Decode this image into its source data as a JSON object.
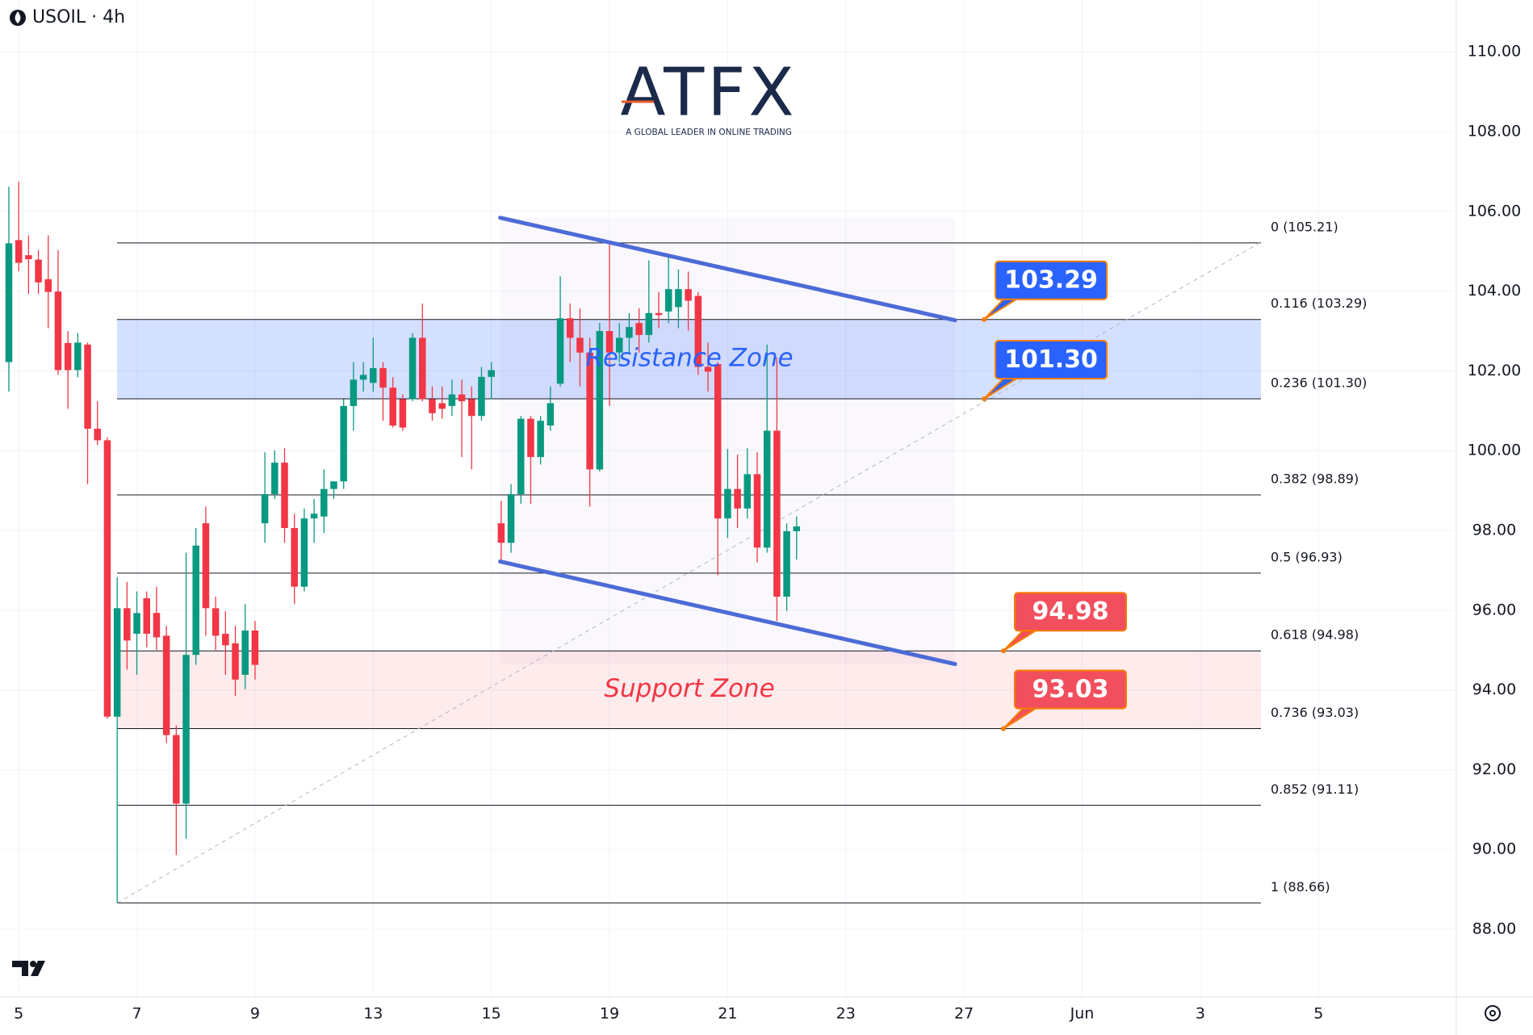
{
  "logo": {
    "title": "ATFX",
    "tagline": "A GLOBAL LEADER IN ONLINE TRADING"
  },
  "chart_data": {
    "type": "candlestick",
    "title": "USOIL · 4h",
    "up_color": "#089981",
    "down_color": "#f23645",
    "x": [
      -1,
      0,
      1,
      2,
      3,
      4,
      5,
      6,
      7,
      8,
      9,
      10,
      11,
      12,
      13,
      14,
      15,
      16,
      17,
      18,
      19,
      20,
      21,
      22,
      23,
      24,
      25,
      26,
      27,
      28,
      29,
      30,
      31,
      32,
      33,
      34,
      35,
      36,
      37,
      38,
      39,
      40,
      41,
      42,
      43,
      44,
      45,
      46,
      47,
      48,
      49,
      50,
      51,
      52,
      53,
      54,
      55,
      56,
      57,
      58,
      59,
      60,
      61,
      62,
      63,
      64,
      65,
      66,
      67,
      68,
      69,
      70,
      71,
      72,
      73,
      74,
      75,
      76,
      77,
      78,
      79
    ],
    "open": [
      102.22,
      105.28,
      104.9,
      104.79,
      104.3,
      103.99,
      102.7,
      102.02,
      102.66,
      100.55,
      100.26,
      93.33,
      96.05,
      95.41,
      96.3,
      95.93,
      95.36,
      92.87,
      91.15,
      94.88,
      98.18,
      96.05,
      95.41,
      95.17,
      94.38,
      95.49,
      98.18,
      98.91,
      99.7,
      98.06,
      96.59,
      98.3,
      98.35,
      99.04,
      99.23,
      101.12,
      101.78,
      101.7,
      102.07,
      101.58,
      101.29,
      101.29,
      102.83,
      101.29,
      101.19,
      101.12,
      101.41,
      101.29,
      100.87,
      101.85,
      98.18,
      97.69,
      98.91,
      100.8,
      99.84,
      100.63,
      101.68,
      103.32,
      102.83,
      102.46,
      99.53,
      103.0,
      102.46,
      102.83,
      103.2,
      102.9,
      103.45,
      103.49,
      103.6,
      104.05,
      103.88,
      102.1,
      102.17,
      98.3,
      99.04,
      98.55,
      99.41,
      97.57,
      100.5,
      96.34,
      97.98
    ],
    "high": [
      106.62,
      106.74,
      105.4,
      105.03,
      105.4,
      105.03,
      103.0,
      102.95,
      102.71,
      101.24,
      100.33,
      96.83,
      96.71,
      96.47,
      96.47,
      96.59,
      95.61,
      93.11,
      97.44,
      98.06,
      98.6,
      96.34,
      95.98,
      95.61,
      96.15,
      95.73,
      99.96,
      100.01,
      100.06,
      98.42,
      98.55,
      98.79,
      99.53,
      99.21,
      101.29,
      102.22,
      102.22,
      102.83,
      102.22,
      101.84,
      101.41,
      102.95,
      103.69,
      101.61,
      101.61,
      101.78,
      101.78,
      101.61,
      102.1,
      102.22,
      98.74,
      99.16,
      100.87,
      100.87,
      100.87,
      101.61,
      104.37,
      103.69,
      103.57,
      102.83,
      103.2,
      105.21,
      103.2,
      103.45,
      103.57,
      104.77,
      103.98,
      104.86,
      104.55,
      104.49,
      103.98,
      102.71,
      102.22,
      100.04,
      99.9,
      100.06,
      99.96,
      102.66,
      102.34,
      98.18,
      98.35
    ],
    "low": [
      101.48,
      104.5,
      103.93,
      103.93,
      103.07,
      101.9,
      101.05,
      101.84,
      99.16,
      100.14,
      93.28,
      88.66,
      94.51,
      94.38,
      95.07,
      95.0,
      92.67,
      89.86,
      90.27,
      94.63,
      95.36,
      95.0,
      94.38,
      93.85,
      94.02,
      94.26,
      97.69,
      98.79,
      97.69,
      96.15,
      96.47,
      97.69,
      97.93,
      98.79,
      99.04,
      100.5,
      101.48,
      101.48,
      100.75,
      100.58,
      100.5,
      101.24,
      101.24,
      100.75,
      100.8,
      100.87,
      99.84,
      99.53,
      100.75,
      101.29,
      97.2,
      97.44,
      98.67,
      98.67,
      99.65,
      100.5,
      101.61,
      102.22,
      101.61,
      98.6,
      99.48,
      101.12,
      102.22,
      102.46,
      102.46,
      102.71,
      103.07,
      103.2,
      103.07,
      103.01,
      101.9,
      101.48,
      96.88,
      97.81,
      98.06,
      98.3,
      97.2,
      97.44,
      95.73,
      95.98,
      97.27
    ],
    "close": [
      105.2,
      104.71,
      104.8,
      104.22,
      103.98,
      102.02,
      102.02,
      102.71,
      100.55,
      100.26,
      93.33,
      96.05,
      95.24,
      95.93,
      95.41,
      95.32,
      92.87,
      91.15,
      94.88,
      97.62,
      96.05,
      95.36,
      95.12,
      94.26,
      95.49,
      94.63,
      98.91,
      99.7,
      98.06,
      96.59,
      98.3,
      98.42,
      99.04,
      99.23,
      101.12,
      101.78,
      101.9,
      102.07,
      101.58,
      100.63,
      100.58,
      102.83,
      101.29,
      100.94,
      101.05,
      101.41,
      101.24,
      100.87,
      101.85,
      102.02,
      97.69,
      98.91,
      100.8,
      99.84,
      100.75,
      101.19,
      103.32,
      102.83,
      102.46,
      99.53,
      103.0,
      102.46,
      102.83,
      103.1,
      102.9,
      103.45,
      103.4,
      104.05,
      104.05,
      103.76,
      102.1,
      101.98,
      98.3,
      99.04,
      98.55,
      99.41,
      97.57,
      100.5,
      96.34,
      97.98,
      98.1
    ],
    "xlim": [
      -1.9,
      146
    ],
    "xticks": [
      {
        "value": 0,
        "label": "5"
      },
      {
        "value": 12,
        "label": "7"
      },
      {
        "value": 24,
        "label": "9"
      },
      {
        "value": 36,
        "label": "13"
      },
      {
        "value": 48,
        "label": "15"
      },
      {
        "value": 60,
        "label": "19"
      },
      {
        "value": 72,
        "label": "21"
      },
      {
        "value": 84,
        "label": "23"
      },
      {
        "value": 96,
        "label": "27"
      },
      {
        "value": 108,
        "label": "Jun"
      },
      {
        "value": 120,
        "label": "3"
      },
      {
        "value": 132,
        "label": "5"
      }
    ],
    "ylim": [
      86.3,
      111.3
    ],
    "yticks": [
      {
        "value": 88,
        "label": "88.00"
      },
      {
        "value": 90,
        "label": "90.00"
      },
      {
        "value": 92,
        "label": "92.00"
      },
      {
        "value": 94,
        "label": "94.00"
      },
      {
        "value": 96,
        "label": "96.00"
      },
      {
        "value": 98,
        "label": "98.00"
      },
      {
        "value": 100,
        "label": "100.00"
      },
      {
        "value": 102,
        "label": "102.00"
      },
      {
        "value": 104,
        "label": "104.00"
      },
      {
        "value": 106,
        "label": "106.00"
      },
      {
        "value": 108,
        "label": "108.00"
      },
      {
        "value": 110,
        "label": "110.00"
      }
    ],
    "grid": true,
    "fib_levels": [
      {
        "value": 105.21,
        "label": "0 (105.21)"
      },
      {
        "value": 103.29,
        "label": "0.116 (103.29)"
      },
      {
        "value": 101.3,
        "label": "0.236 (101.30)"
      },
      {
        "value": 98.89,
        "label": "0.382 (98.89)"
      },
      {
        "value": 96.93,
        "label": "0.5 (96.93)"
      },
      {
        "value": 94.98,
        "label": "0.618 (94.98)"
      },
      {
        "value": 93.03,
        "label": "0.736 (93.03)"
      },
      {
        "value": 91.11,
        "label": "0.852 (91.11)"
      },
      {
        "value": 88.66,
        "label": "1 (88.66)"
      }
    ],
    "fib_trend": {
      "x": [
        10,
        126
      ],
      "y": [
        88.66,
        105.21
      ]
    },
    "zones": [
      {
        "label": "Resistance Zone",
        "low": 101.3,
        "high": 103.29,
        "color": "#2962ff"
      },
      {
        "label": "Support Zone",
        "low": 93.03,
        "high": 94.98,
        "color": "#f23645"
      }
    ],
    "trendlines": [
      {
        "x": [
          48.9,
          95.1
        ],
        "y": [
          105.84,
          103.27
        ]
      },
      {
        "x": [
          48.9,
          95.1
        ],
        "y": [
          97.22,
          94.65
        ]
      }
    ],
    "trendline_color": "#4d6bd6",
    "annotations": [
      {
        "value": 103.29,
        "label": "103.29",
        "color": "#2962ff"
      },
      {
        "value": 101.3,
        "label": "101.30",
        "color": "#2962ff"
      },
      {
        "value": 94.98,
        "label": "94.98",
        "color": "#f24f5e"
      },
      {
        "value": 93.03,
        "label": "93.03",
        "color": "#f24f5e"
      }
    ]
  }
}
